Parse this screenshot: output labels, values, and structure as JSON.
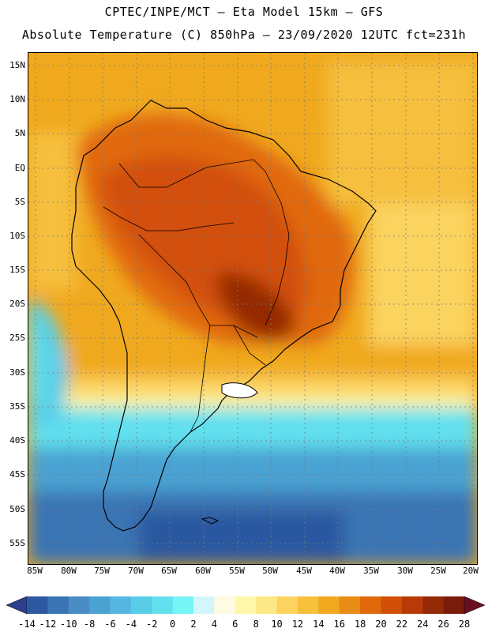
{
  "header": {
    "line1": "CPTEC/INPE/MCT –  Eta Model 15km – GFS",
    "line2": "Absolute Temperature (C) 850hPa – 23/09/2020 12UTC fct=231h"
  },
  "map": {
    "lat_labels": [
      "15N",
      "10N",
      "5N",
      "EQ",
      "5S",
      "10S",
      "15S",
      "20S",
      "25S",
      "30S",
      "35S",
      "40S",
      "45S",
      "50S",
      "55S"
    ],
    "lon_labels": [
      "85W",
      "80W",
      "75W",
      "70W",
      "65W",
      "60W",
      "55W",
      "50W",
      "45W",
      "40W",
      "35W",
      "30W",
      "25W",
      "20W"
    ],
    "grid": "dotted",
    "region": "South America"
  },
  "colorbar": {
    "levels": [
      "-14",
      "-12",
      "-10",
      "-8",
      "-6",
      "-4",
      "-2",
      "0",
      "2",
      "4",
      "6",
      "8",
      "10",
      "12",
      "14",
      "16",
      "18",
      "20",
      "22",
      "24",
      "26",
      "28"
    ],
    "colors": [
      "#2b3f8f",
      "#2c58a0",
      "#3a74b4",
      "#4a8cc4",
      "#4aa2d2",
      "#55b7e1",
      "#58cde8",
      "#62e0ee",
      "#75f5f6",
      "#d4f6fb",
      "#fefbe2",
      "#fef6a8",
      "#fde885",
      "#fbd35e",
      "#f6bf3c",
      "#f0a91f",
      "#e98c15",
      "#e1690c",
      "#d24f0a",
      "#b93a08",
      "#952a06",
      "#7a1c0b",
      "#6a0f22"
    ]
  }
}
